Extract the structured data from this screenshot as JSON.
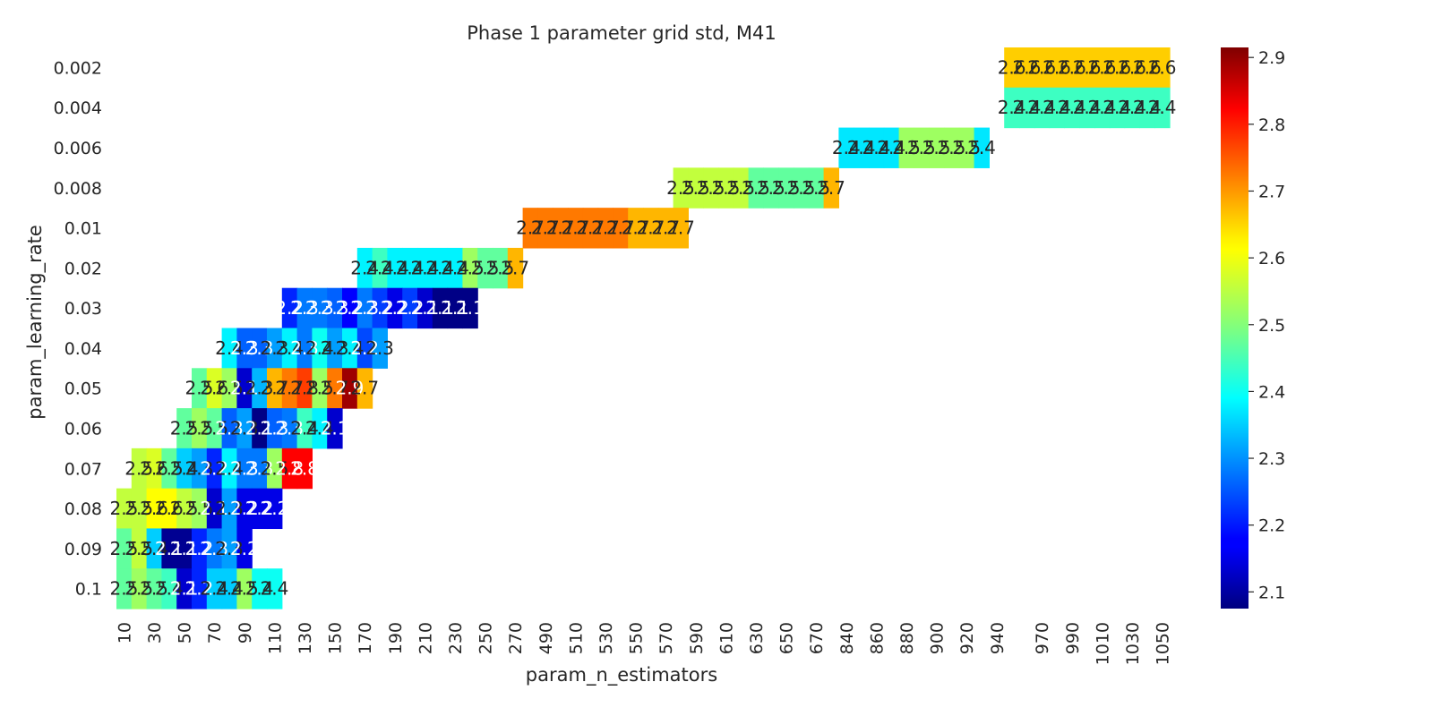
{
  "chart_data": {
    "type": "heatmap",
    "title": "Phase 1 parameter grid std, M41",
    "xlabel": "param_n_estimators",
    "ylabel": "param_learning_rate",
    "x_categories": [
      10,
      20,
      30,
      40,
      50,
      60,
      70,
      80,
      90,
      100,
      110,
      120,
      130,
      140,
      150,
      160,
      170,
      180,
      190,
      200,
      210,
      220,
      230,
      240,
      250,
      260,
      270,
      480,
      490,
      500,
      510,
      520,
      530,
      540,
      550,
      560,
      570,
      580,
      590,
      600,
      610,
      620,
      630,
      640,
      650,
      660,
      670,
      830,
      840,
      850,
      860,
      870,
      880,
      890,
      900,
      910,
      920,
      930,
      940,
      950,
      960,
      970,
      980,
      990,
      1000,
      1010,
      1020,
      1030,
      1040,
      1050
    ],
    "x_tick_labels": [
      "10",
      "30",
      "50",
      "70",
      "90",
      "110",
      "130",
      "150",
      "170",
      "190",
      "210",
      "230",
      "250",
      "270",
      "490",
      "510",
      "530",
      "550",
      "570",
      "590",
      "610",
      "630",
      "650",
      "670",
      "840",
      "860",
      "880",
      "900",
      "920",
      "940",
      "970",
      "990",
      "1010",
      "1030",
      "1050"
    ],
    "y_categories": [
      "0.002",
      "0.004",
      "0.006",
      "0.008",
      "0.01",
      "0.02",
      "0.03",
      "0.04",
      "0.05",
      "0.06",
      "0.07",
      "0.08",
      "0.09",
      "0.1"
    ],
    "colorbar": {
      "colormap": "jet",
      "range": [
        2.075,
        2.915
      ],
      "ticks": [
        2.1,
        2.2,
        2.3,
        2.4,
        2.5,
        2.6,
        2.7,
        2.8,
        2.9
      ]
    },
    "rows": [
      {
        "y": "0.002",
        "start": 59,
        "values": [
          2.64,
          2.64,
          2.64,
          2.64,
          2.64,
          2.64,
          2.64,
          2.64,
          2.64,
          2.64,
          2.64
        ]
      },
      {
        "y": "0.004",
        "start": 59,
        "values": [
          2.44,
          2.44,
          2.44,
          2.44,
          2.44,
          2.44,
          2.44,
          2.44,
          2.44,
          2.44,
          2.44
        ]
      },
      {
        "y": "0.006",
        "start": 48,
        "values": [
          2.37,
          2.37,
          2.37,
          2.37,
          2.52,
          2.52,
          2.52,
          2.52,
          2.52,
          2.37
        ]
      },
      {
        "y": "0.008",
        "start": 37,
        "values": [
          2.55,
          2.55,
          2.55,
          2.55,
          2.55,
          2.47,
          2.47,
          2.47,
          2.47,
          2.47,
          2.66
        ]
      },
      {
        "y": "0.01",
        "start": 27,
        "values": [
          2.71,
          2.71,
          2.71,
          2.71,
          2.71,
          2.71,
          2.71,
          2.66,
          2.66,
          2.66,
          2.66
        ]
      },
      {
        "y": "0.02",
        "start": 16,
        "values": [
          2.38,
          2.44,
          2.38,
          2.38,
          2.38,
          2.38,
          2.38,
          2.52,
          2.47,
          2.47,
          2.66
        ]
      },
      {
        "y": "0.03",
        "start": 11,
        "values": [
          2.21,
          2.28,
          2.28,
          2.26,
          2.18,
          2.28,
          2.23,
          2.16,
          2.23,
          2.14,
          2.08,
          2.08,
          2.08
        ]
      },
      {
        "y": "0.04",
        "start": 7,
        "values": [
          2.38,
          2.26,
          2.26,
          2.31,
          2.38,
          2.28,
          2.4,
          2.31,
          2.38,
          2.24,
          2.31
        ]
      },
      {
        "y": "0.05",
        "start": 5,
        "values": [
          2.47,
          2.57,
          2.52,
          2.14,
          2.33,
          2.66,
          2.71,
          2.76,
          2.52,
          2.71,
          2.89,
          2.66
        ]
      },
      {
        "y": "0.06",
        "start": 4,
        "values": [
          2.47,
          2.52,
          2.47,
          2.26,
          2.31,
          2.08,
          2.26,
          2.28,
          2.44,
          2.38,
          2.14
        ]
      },
      {
        "y": "0.07",
        "start": 1,
        "values": [
          2.55,
          2.57,
          2.47,
          2.35,
          2.31,
          2.21,
          2.38,
          2.28,
          2.28,
          2.52,
          2.81,
          2.81
        ]
      },
      {
        "y": "0.08",
        "start": 0,
        "values": [
          2.55,
          2.55,
          2.6,
          2.6,
          2.55,
          2.52,
          2.14,
          2.31,
          2.16,
          2.16,
          2.16
        ]
      },
      {
        "y": "0.09",
        "start": 0,
        "values": [
          2.47,
          2.55,
          2.35,
          2.09,
          2.09,
          2.21,
          2.28,
          2.31,
          2.16
        ]
      },
      {
        "y": "0.1",
        "start": 0,
        "values": [
          2.47,
          2.52,
          2.47,
          2.44,
          2.14,
          2.21,
          2.35,
          2.35,
          2.52,
          2.4,
          2.4
        ]
      }
    ]
  }
}
